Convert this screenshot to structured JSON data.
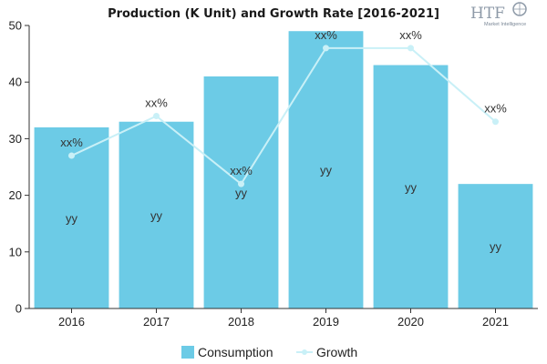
{
  "chart_data": {
    "type": "bar",
    "title": "Production (K Unit) and Growth Rate [2016-2021]",
    "categories": [
      "2016",
      "2017",
      "2018",
      "2019",
      "2020",
      "2021"
    ],
    "series": [
      {
        "name": "Consumption",
        "type": "bar",
        "values": [
          32,
          33,
          41,
          49,
          43,
          22
        ],
        "labels": [
          "yy",
          "yy",
          "yy",
          "yy",
          "yy",
          "yy"
        ],
        "color": "#6ccbe6"
      },
      {
        "name": "Growth",
        "type": "line",
        "values": [
          27,
          34,
          22,
          46,
          46,
          33
        ],
        "labels": [
          "xx%",
          "xx%",
          "xx%",
          "xx%",
          "xx%",
          "xx%"
        ],
        "color": "#c9f0f7"
      }
    ],
    "ylim": [
      0,
      50
    ],
    "yticks": [
      0,
      10,
      20,
      30,
      40,
      50
    ],
    "legend": "bottom-center",
    "grid": false
  },
  "logo": {
    "main": "HTF",
    "sub": "Market Intelligence"
  }
}
